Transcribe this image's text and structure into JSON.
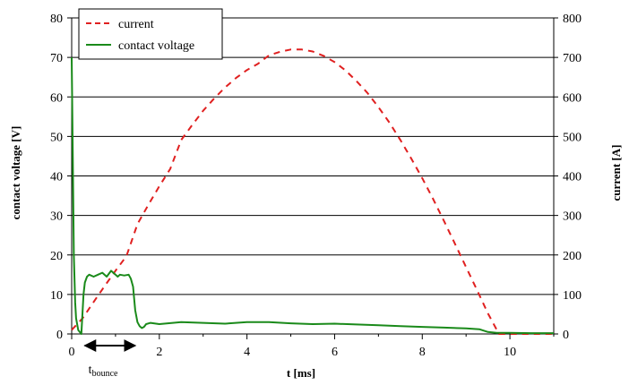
{
  "chart_data": {
    "type": "line",
    "title": "",
    "xlabel": "t [ms]",
    "ylabel_left": "contact voltage [V]",
    "ylabel_right": "current [A]",
    "xlim": [
      0,
      11
    ],
    "ylim_left": [
      0,
      80
    ],
    "ylim_right": [
      0,
      800
    ],
    "grid": "horizontal",
    "legend_position": "top-left",
    "x_ticks": [
      "0",
      "2",
      "4",
      "6",
      "8",
      "10"
    ],
    "y_left_ticks": [
      "0",
      "10",
      "20",
      "30",
      "40",
      "50",
      "60",
      "70",
      "80"
    ],
    "y_right_ticks": [
      "0",
      "100",
      "200",
      "300",
      "400",
      "500",
      "600",
      "700",
      "800"
    ],
    "series": [
      {
        "name": "current",
        "axis": "right",
        "style": "dashed",
        "color": "#e02020",
        "x": [
          0,
          0.25,
          0.5,
          0.75,
          1.0,
          1.25,
          1.5,
          1.75,
          2.0,
          2.25,
          2.5,
          2.75,
          3.0,
          3.25,
          3.5,
          3.75,
          4.0,
          4.25,
          4.5,
          4.75,
          5.0,
          5.25,
          5.5,
          5.75,
          6.0,
          6.25,
          6.5,
          6.75,
          7.0,
          7.25,
          7.5,
          7.75,
          8.0,
          8.25,
          8.5,
          8.75,
          9.0,
          9.25,
          9.5,
          9.75,
          10.0,
          10.5,
          11.0
        ],
        "values": [
          10,
          40,
          81,
          121,
          160,
          197,
          278,
          327,
          374,
          418,
          491,
          529,
          565,
          596,
          624,
          648,
          668,
          684,
          705,
          714,
          720,
          720,
          715,
          704,
          688,
          667,
          640,
          610,
          574,
          535,
          491,
          444,
          394,
          341,
          285,
          227,
          169,
          111,
          52,
          0,
          0,
          0,
          0
        ]
      },
      {
        "name": "contact voltage",
        "axis": "left",
        "style": "solid",
        "color": "#1a8a1a",
        "x": [
          0,
          0.02,
          0.05,
          0.08,
          0.1,
          0.15,
          0.22,
          0.27,
          0.3,
          0.35,
          0.4,
          0.5,
          0.6,
          0.7,
          0.8,
          0.9,
          1.0,
          1.05,
          1.1,
          1.2,
          1.3,
          1.35,
          1.4,
          1.45,
          1.5,
          1.55,
          1.6,
          1.65,
          1.7,
          1.8,
          2.0,
          2.5,
          3.0,
          3.5,
          4.0,
          4.5,
          5.0,
          5.5,
          6.0,
          6.5,
          7.0,
          7.5,
          8.0,
          8.5,
          9.0,
          9.3,
          9.5,
          9.7,
          10.0,
          10.5,
          11.0
        ],
        "values": [
          70,
          50,
          20,
          8,
          4,
          1,
          0,
          10,
          13,
          14.5,
          15,
          14.5,
          15,
          15.5,
          14.5,
          16,
          15,
          14.5,
          15,
          14.8,
          15,
          14,
          12,
          6,
          3,
          2,
          1.5,
          1.8,
          2.5,
          2.8,
          2.5,
          3.0,
          2.8,
          2.6,
          3.0,
          3.0,
          2.7,
          2.5,
          2.6,
          2.4,
          2.2,
          2.0,
          1.8,
          1.6,
          1.4,
          1.2,
          0.5,
          0.3,
          0.3,
          0.2,
          0.2
        ]
      }
    ],
    "annotations": [
      {
        "type": "double-arrow",
        "x_start": 0.3,
        "x_end": 1.45,
        "label": "t",
        "label_subscript": "bounce"
      }
    ]
  }
}
